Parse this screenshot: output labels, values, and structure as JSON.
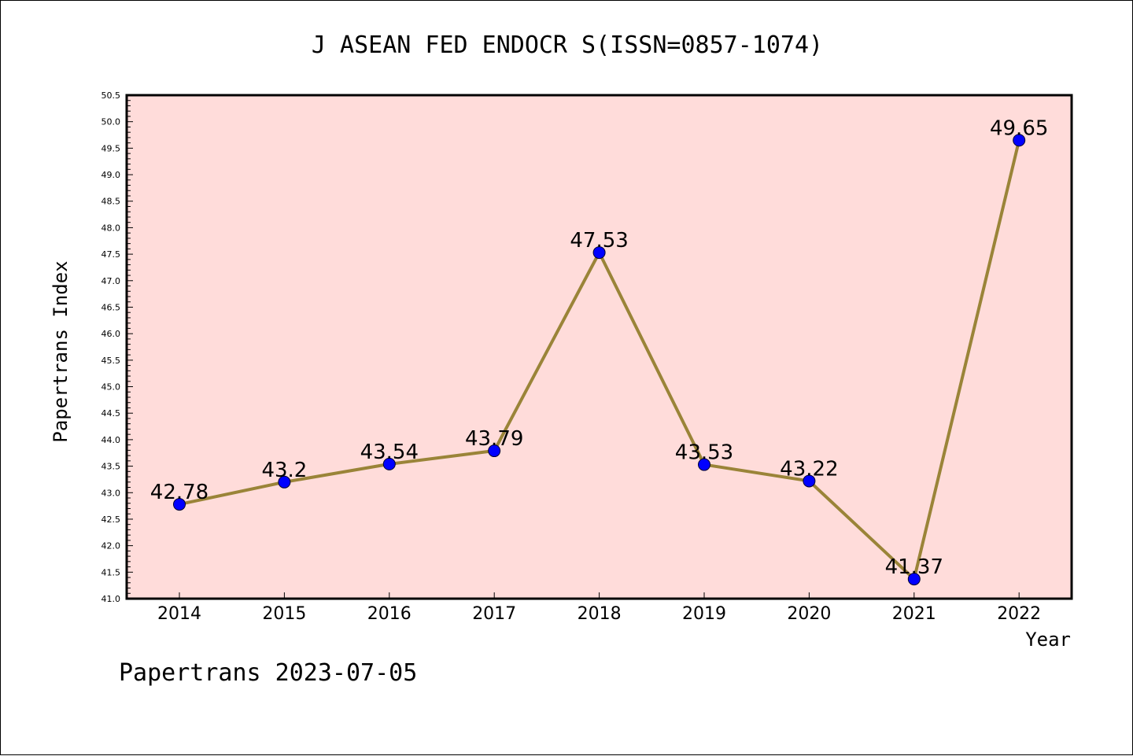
{
  "chart_data": {
    "type": "line",
    "title": "J ASEAN FED ENDOCR S(ISSN=0857-1074)",
    "xlabel": "Year",
    "ylabel": "Papertrans Index",
    "categories": [
      "2014",
      "2015",
      "2016",
      "2017",
      "2018",
      "2019",
      "2020",
      "2021",
      "2022"
    ],
    "series": [
      {
        "values": [
          42.78,
          43.2,
          43.54,
          43.79,
          47.53,
          43.53,
          43.22,
          41.37,
          49.65
        ],
        "labels": [
          "42.78",
          "43.2",
          "43.54",
          "43.79",
          "47.53",
          "43.53",
          "43.22",
          "41.37",
          "49.65"
        ]
      }
    ],
    "ylim": [
      41.0,
      50.5
    ],
    "ytick_step": 0.5,
    "yticks": [
      "41.0",
      "41.5",
      "42.0",
      "42.5",
      "43.0",
      "43.5",
      "44.0",
      "44.5",
      "45.0",
      "45.5",
      "46.0",
      "46.5",
      "47.0",
      "47.5",
      "48.0",
      "48.5",
      "49.0",
      "49.5",
      "50.0",
      "50.5"
    ],
    "grid": false,
    "line_color": "#9a8438",
    "marker_color": "#0000ff",
    "plot_background": "#ffdcda"
  },
  "footer": "Papertrans 2023-07-05"
}
